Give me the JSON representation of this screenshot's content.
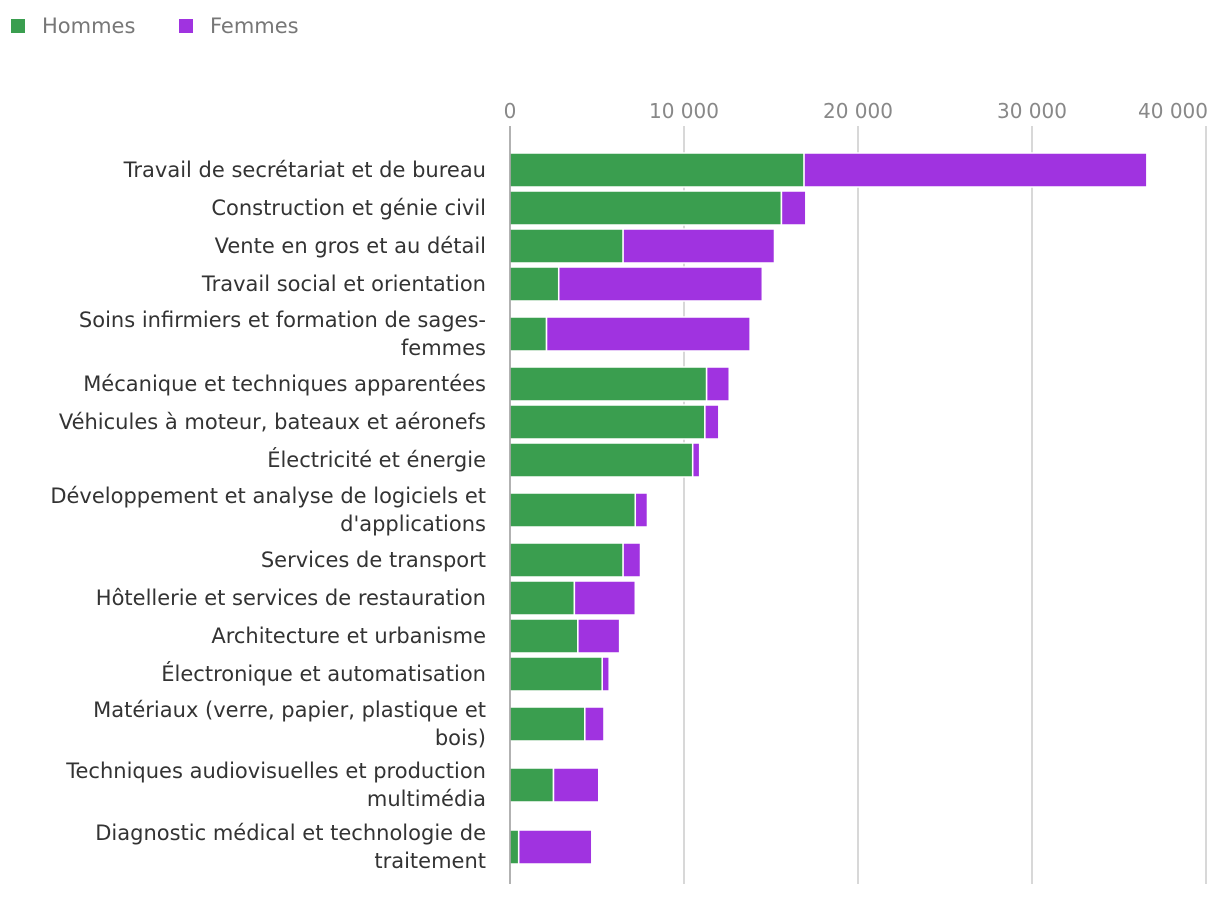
{
  "chart_data": {
    "type": "bar",
    "orientation": "horizontal",
    "stacked": true,
    "legend_position": "top-left",
    "grid": true,
    "xlim": [
      0,
      40000
    ],
    "x_ticks": [
      0,
      10000,
      20000,
      30000,
      40000
    ],
    "x_tick_labels": [
      "0",
      "10 000",
      "20 000",
      "30 000",
      "40 000"
    ],
    "categories": [
      "Travail de secrétariat et de bureau",
      "Construction et génie civil",
      "Vente en gros et au détail",
      "Travail social et orientation",
      "Soins infirmiers et formation de sages-femmes",
      "Mécanique et techniques apparentées",
      "Véhicules à moteur, bateaux et aéronefs",
      "Électricité et énergie",
      "Développement et analyse de logiciels et d'applications",
      "Services de transport",
      "Hôtellerie et services de restauration",
      "Architecture et urbanisme",
      "Électronique et automatisation",
      "Matériaux (verre, papier, plastique et bois)",
      "Techniques audiovisuelles et production multimédia",
      "Diagnostic médical et technologie de traitement"
    ],
    "category_lines": [
      [
        "Travail de secrétariat et de bureau"
      ],
      [
        "Construction et génie civil"
      ],
      [
        "Vente en gros et au détail"
      ],
      [
        "Travail social et orientation"
      ],
      [
        "Soins infirmiers et formation de sages-",
        "femmes"
      ],
      [
        "Mécanique et techniques apparentées"
      ],
      [
        "Véhicules à moteur, bateaux et aéronefs"
      ],
      [
        "Électricité et énergie"
      ],
      [
        "Développement et analyse de logiciels et",
        "d'applications"
      ],
      [
        "Services de transport"
      ],
      [
        "Hôtellerie et services de restauration"
      ],
      [
        "Architecture et urbanisme"
      ],
      [
        "Électronique et automatisation"
      ],
      [
        "Matériaux (verre, papier, plastique et",
        "bois)"
      ],
      [
        "Techniques audiovisuelles et production",
        "multimédia"
      ],
      [
        "Diagnostic médical et technologie de",
        "traitement"
      ]
    ],
    "series": [
      {
        "name": "Hommes",
        "color": "#3a9e4f",
        "values": [
          16900,
          15600,
          6500,
          2800,
          2100,
          11300,
          11200,
          10500,
          7200,
          6500,
          3700,
          3900,
          5300,
          4300,
          2500,
          500
        ]
      },
      {
        "name": "Femmes",
        "color": "#a033e0",
        "values": [
          19700,
          1400,
          8700,
          11700,
          11700,
          1300,
          800,
          400,
          700,
          1000,
          3500,
          2400,
          400,
          1100,
          2600,
          4200
        ]
      }
    ]
  }
}
